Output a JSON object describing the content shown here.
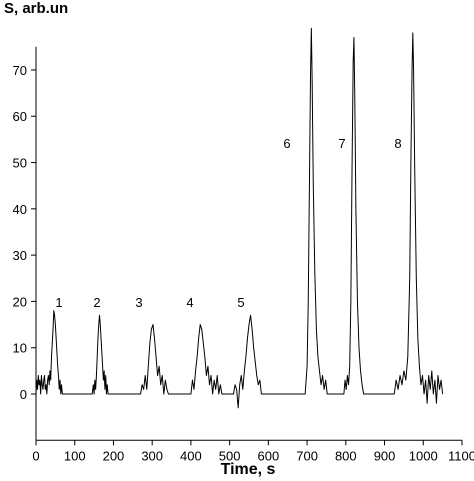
{
  "chart_data": {
    "type": "line",
    "ylabel": "S, arb.un",
    "xlabel": "Time, s",
    "xlim": [
      0,
      1100
    ],
    "xticks": [
      0,
      100,
      200,
      300,
      400,
      500,
      600,
      700,
      800,
      900,
      1000,
      1100
    ],
    "ylim": [
      -10,
      75
    ],
    "yticks": [
      0,
      10,
      20,
      30,
      40,
      50,
      60,
      70
    ],
    "annotations": [
      "1",
      "2",
      "3",
      "4",
      "5",
      "6",
      "7",
      "8"
    ],
    "x": [
      0,
      2,
      4,
      6,
      8,
      10,
      12,
      14,
      16,
      18,
      20,
      22,
      24,
      26,
      28,
      30,
      32,
      34,
      36,
      38,
      40,
      42,
      44,
      46,
      48,
      50,
      52,
      54,
      56,
      58,
      60,
      62,
      64,
      66,
      68,
      145,
      148,
      150,
      152,
      154,
      156,
      158,
      160,
      162,
      164,
      166,
      168,
      170,
      172,
      174,
      176,
      178,
      180,
      182,
      184,
      186,
      270,
      274,
      278,
      282,
      286,
      290,
      294,
      298,
      302,
      306,
      310,
      314,
      318,
      322,
      326,
      330,
      334,
      338,
      342,
      400,
      404,
      408,
      412,
      416,
      420,
      424,
      428,
      432,
      436,
      440,
      444,
      448,
      452,
      456,
      460,
      464,
      468,
      472,
      476,
      480,
      510,
      514,
      518,
      522,
      526,
      530,
      534,
      538,
      542,
      546,
      550,
      554,
      558,
      562,
      566,
      570,
      574,
      578,
      582,
      695,
      700,
      703,
      706,
      709,
      711,
      713,
      716,
      720,
      724,
      728,
      732,
      736,
      740,
      744,
      748,
      752,
      795,
      798,
      801,
      804,
      807,
      810,
      813,
      816,
      819,
      821,
      823,
      826,
      830,
      834,
      838,
      842,
      846,
      925,
      930,
      935,
      940,
      945,
      950,
      955,
      960,
      965,
      968,
      971,
      973,
      975,
      978,
      982,
      986,
      990,
      994,
      998,
      1002,
      1006,
      1010,
      1014,
      1018,
      1022,
      1026,
      1030,
      1034,
      1038,
      1042,
      1046,
      1050
    ],
    "series": [
      {
        "color": "#000000",
        "values": [
          0,
          3,
          1,
          4,
          2,
          3,
          0,
          4,
          2,
          1,
          3,
          4,
          1,
          2,
          0,
          3,
          4,
          2,
          5,
          3,
          8,
          11,
          14,
          18,
          17,
          15,
          12,
          9,
          6,
          4,
          1,
          3,
          0,
          2,
          0,
          0,
          2,
          0,
          3,
          1,
          4,
          8,
          12,
          15,
          17,
          15,
          12,
          9,
          6,
          3,
          5,
          1,
          4,
          0,
          2,
          0,
          0,
          2,
          1,
          4,
          1,
          6,
          11,
          14,
          15,
          12,
          8,
          4,
          6,
          2,
          4,
          0,
          3,
          1,
          0,
          0,
          3,
          1,
          5,
          8,
          12,
          15,
          14,
          11,
          8,
          4,
          6,
          2,
          4,
          0,
          3,
          1,
          4,
          0,
          2,
          0,
          0,
          2,
          1,
          -3,
          2,
          4,
          1,
          5,
          8,
          12,
          15,
          17,
          14,
          10,
          7,
          4,
          2,
          3,
          0,
          0,
          6,
          20,
          45,
          70,
          79,
          68,
          45,
          26,
          14,
          8,
          5,
          2,
          4,
          1,
          3,
          0,
          0,
          3,
          1,
          4,
          2,
          6,
          20,
          48,
          72,
          77,
          65,
          40,
          20,
          10,
          5,
          2,
          0,
          0,
          3,
          1,
          4,
          2,
          5,
          3,
          8,
          25,
          50,
          70,
          78,
          70,
          48,
          25,
          12,
          6,
          2,
          4,
          0,
          3,
          -2,
          4,
          1,
          5,
          0,
          3,
          -2,
          4,
          1,
          3,
          0
        ]
      }
    ]
  }
}
